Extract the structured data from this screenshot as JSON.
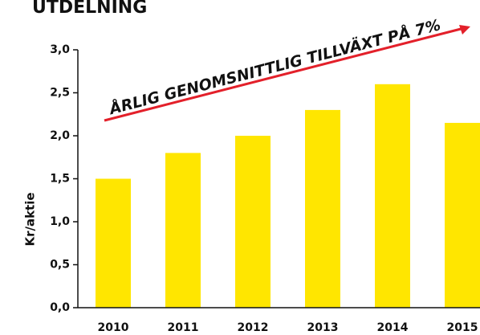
{
  "chart_data": {
    "type": "bar",
    "title": "UTDELNING",
    "y_label": "Kr/aktie",
    "annotation": "ÅRLIG GENOMSNITTLIG TILLVÄXT PÅ 7%",
    "categories": [
      "2010",
      "2011",
      "2012",
      "2013",
      "2014",
      "2015"
    ],
    "values": [
      1.5,
      1.8,
      2.0,
      2.3,
      2.6,
      2.15
    ],
    "color": "#ffe600",
    "arrow_color": "#e3202a",
    "ylim": [
      0,
      3
    ],
    "yticks": [
      {
        "value": 0,
        "label": "0,0"
      },
      {
        "value": 0.5,
        "label": "0,5"
      },
      {
        "value": 1,
        "label": "1,0"
      },
      {
        "value": 1.5,
        "label": "1,5"
      },
      {
        "value": 2,
        "label": "2,0"
      },
      {
        "value": 2.5,
        "label": "2,5"
      },
      {
        "value": 3,
        "label": "3,0"
      }
    ],
    "grid": false
  }
}
